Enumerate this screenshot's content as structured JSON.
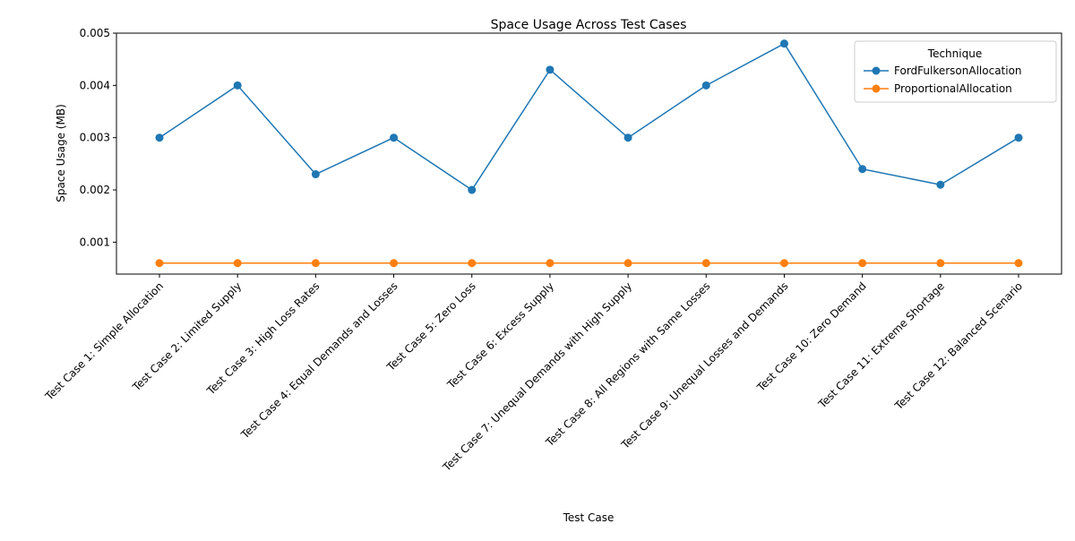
{
  "chart_data": {
    "type": "line",
    "title": "Space Usage Across Test Cases",
    "xlabel": "Test Case",
    "ylabel": "Space Usage (MB)",
    "categories": [
      "Test Case 1: Simple Allocation",
      "Test Case 2: Limited Supply",
      "Test Case 3: High Loss Rates",
      "Test Case 4: Equal Demands and Losses",
      "Test Case 5: Zero Loss",
      "Test Case 6: Excess Supply",
      "Test Case 7: Unequal Demands with High Supply",
      "Test Case 8: All Regions with Same Losses",
      "Test Case 9: Unequal Losses and Demands",
      "Test Case 10: Zero Demand",
      "Test Case 11: Extreme Shortage",
      "Test Case 12: Balanced Scenario"
    ],
    "series": [
      {
        "name": "FordFulkersonAllocation",
        "color": "#1f77b4",
        "values": [
          0.003,
          0.004,
          0.0023,
          0.003,
          0.002,
          0.0043,
          0.003,
          0.004,
          0.0048,
          0.0024,
          0.0021,
          0.003
        ]
      },
      {
        "name": "ProportionalAllocation",
        "color": "#ff7f0e",
        "values": [
          0.0006,
          0.0006,
          0.0006,
          0.0006,
          0.0006,
          0.0006,
          0.0006,
          0.0006,
          0.0006,
          0.0006,
          0.0006,
          0.0006
        ]
      }
    ],
    "ylim": [
      0.00039,
      0.005
    ],
    "yticks": [
      "0.001",
      "0.002",
      "0.003",
      "0.004",
      "0.005"
    ],
    "legend": {
      "title": "Technique",
      "placement": "top-right"
    },
    "grid": false
  }
}
